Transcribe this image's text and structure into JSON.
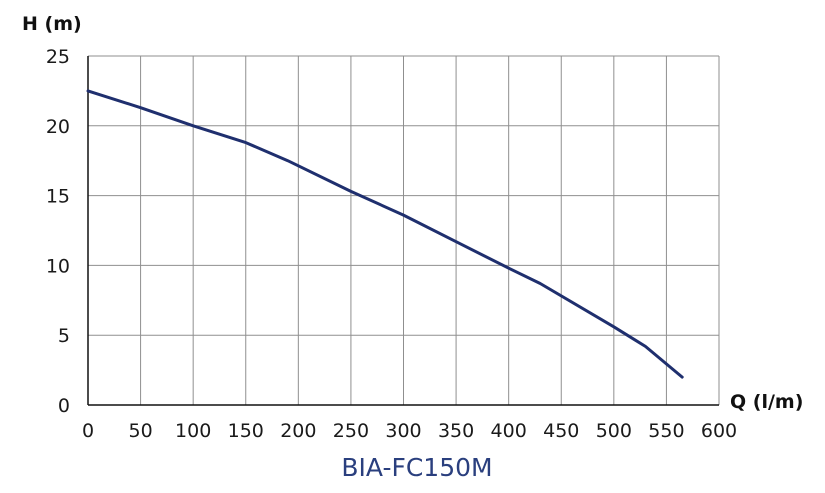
{
  "chart_data": {
    "type": "line",
    "title": "BIA-FC150M",
    "xlabel": "Q (l/m)",
    "ylabel": "H (m)",
    "xlim": [
      0,
      600
    ],
    "ylim": [
      0,
      25
    ],
    "xticks": [
      0,
      50,
      100,
      150,
      200,
      250,
      300,
      350,
      400,
      450,
      500,
      550,
      600
    ],
    "yticks": [
      0,
      5,
      10,
      15,
      20,
      25
    ],
    "grid": true,
    "legend": "none",
    "series": [
      {
        "color": "#1f2f6e",
        "x": [
          0,
          50,
          100,
          150,
          190,
          250,
          300,
          350,
          400,
          430,
          500,
          530,
          565
        ],
        "y": [
          22.5,
          21.3,
          20.0,
          18.8,
          17.5,
          15.3,
          13.6,
          11.7,
          9.8,
          8.7,
          5.6,
          4.2,
          2.0
        ]
      }
    ]
  }
}
